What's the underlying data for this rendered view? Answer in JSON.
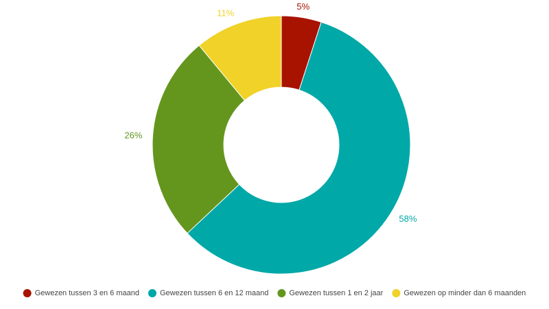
{
  "chart_data": {
    "type": "donut",
    "categories": [
      "Gewezen tussen 3 en 6 maand",
      "Gewezen tussen 6 en 12 maand",
      "Gewezen tussen 1 en 2 jaar",
      "Gewezen op minder dan 6 maanden"
    ],
    "values": [
      5,
      58,
      26,
      11
    ],
    "value_labels": [
      "5%",
      "58%",
      "26%",
      "11%"
    ],
    "colors": [
      "#a81300",
      "#00a8a8",
      "#64961e",
      "#f0d228"
    ],
    "legend": "bottom"
  }
}
